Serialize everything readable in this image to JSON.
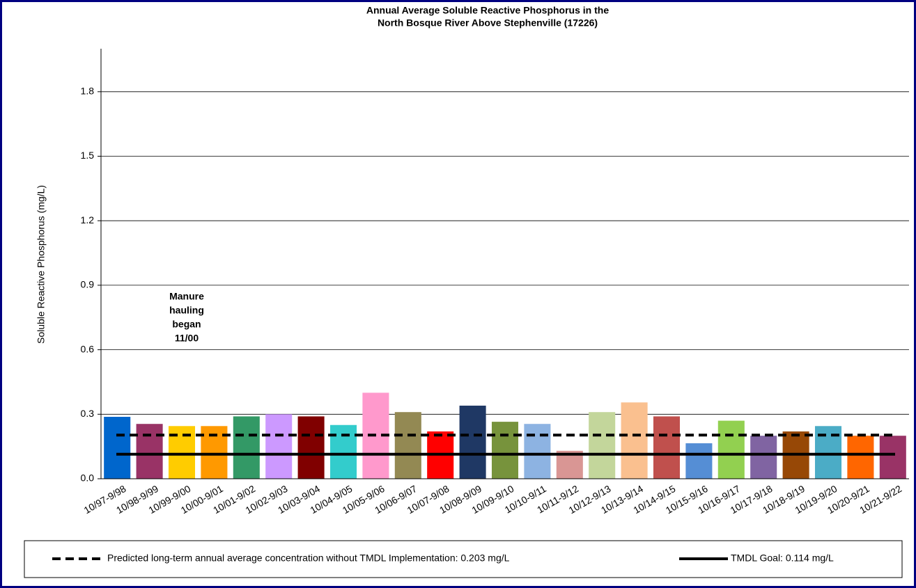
{
  "chart_data": {
    "type": "bar",
    "title": [
      "Annual Average Soluble Reactive Phosphorus in the",
      "North Bosque River Above Stephenville (17226)"
    ],
    "y_label": "Soluble Reactive Phosphorus (mg/L)",
    "categories": [
      "10/97-9/98",
      "10/98-9/99",
      "10/99-9/00",
      "10/00-9/01",
      "10/01-9/02",
      "10/02-9/03",
      "10/03-9/04",
      "10/04-9/05",
      "10/05-9/06",
      "10/06-9/07",
      "10/07-9/08",
      "10/08-9/09",
      "10/09-9/10",
      "10/10-9/11",
      "10/11-9/12",
      "10/12-9/13",
      "10/13-9/14",
      "10/14-9/15",
      "10/15-9/16",
      "10/16-9/17",
      "10/17-9/18",
      "10/18-9/19",
      "10/19-9/20",
      "10/20-9/21",
      "10/21-9/22"
    ],
    "values": [
      0.288,
      0.255,
      0.245,
      0.245,
      0.29,
      0.3,
      0.29,
      0.25,
      0.4,
      0.31,
      0.22,
      0.34,
      0.265,
      0.255,
      0.13,
      0.31,
      0.355,
      0.29,
      0.165,
      0.27,
      0.2,
      0.22,
      0.245,
      0.2,
      0.2
    ],
    "colors": [
      "#0066cc",
      "#993366",
      "#ffcc00",
      "#ff9900",
      "#339966",
      "#cc99ff",
      "#800000",
      "#33cccc",
      "#ff99cc",
      "#938953",
      "#ff0000",
      "#1f3864",
      "#77933c",
      "#8db3e2",
      "#d99694",
      "#c3d69b",
      "#fac08f",
      "#c0504d",
      "#558ed5",
      "#92d050",
      "#8064a2",
      "#974806",
      "#4bacc6",
      "#ff6600",
      "#993366"
    ],
    "ylim": [
      0,
      2.0
    ],
    "yticks": [
      {
        "value": 0,
        "label": "0.0"
      },
      {
        "value": 0.3,
        "label": "0.3"
      },
      {
        "value": 0.6,
        "label": "0.6"
      },
      {
        "value": 0.9,
        "label": "0.9"
      },
      {
        "value": 1.2,
        "label": "1.2"
      },
      {
        "value": 1.5,
        "label": "1.5"
      },
      {
        "value": 1.8,
        "label": "1.8"
      }
    ],
    "grid": true,
    "reference_lines": [
      {
        "name": "Predicted long-term annual average concentration without TMDL Implementation: 0.203 mg/L",
        "value": 0.203,
        "style": "dashed",
        "color": "#000000"
      },
      {
        "name": "TMDL Goal: 0.114 mg/L",
        "value": 0.114,
        "style": "solid",
        "color": "#000000"
      }
    ],
    "annotation": [
      "Manure",
      "hauling",
      "began",
      "11/00"
    ],
    "legend_position": "bottom"
  }
}
